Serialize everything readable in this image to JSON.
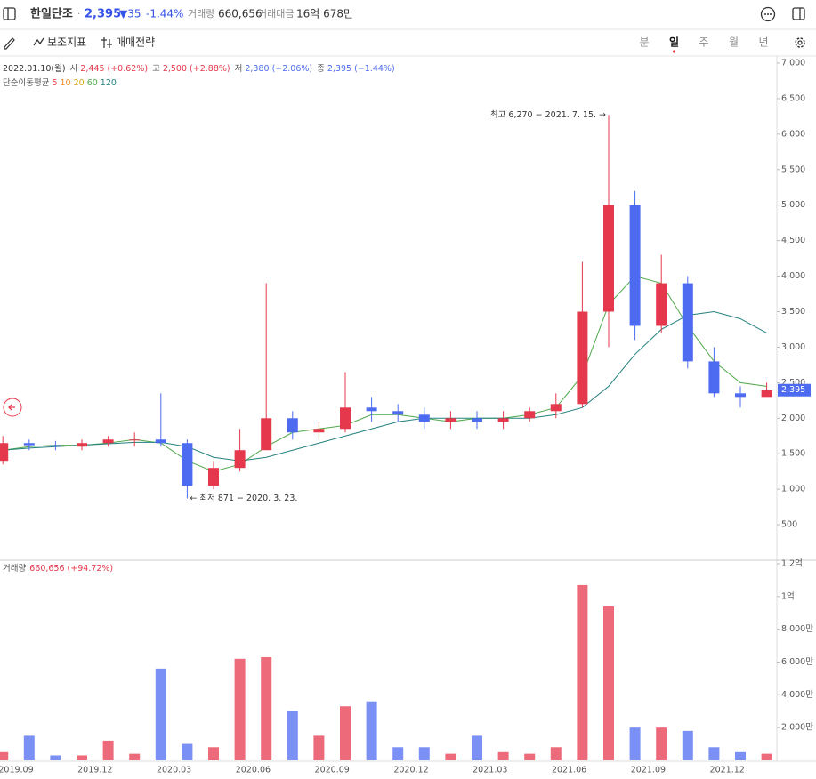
{
  "header": {
    "name": "한일단조",
    "price": "2,395",
    "change": "▼35",
    "change_pct": "-1.44%",
    "volume_label": "거래량",
    "volume": "660,656",
    "amount_label": "거래대금",
    "amount": "16억 678만"
  },
  "toolbar": {
    "indicators": "보조지표",
    "strategy": "매매전략",
    "periods": [
      "분",
      "일",
      "주",
      "월",
      "년"
    ],
    "active_period": 1
  },
  "chart_data": [
    {
      "type": "candlestick",
      "info": [
        {
          "label": "2022.01.10(월)",
          "value": "",
          "color": "#333"
        }
      ],
      "info_items": [
        {
          "label": "시",
          "value": "2,445 (+0.62%)",
          "color": "#e5384c"
        },
        {
          "label": "고",
          "value": "2,500 (+2.88%)",
          "color": "#e5384c"
        },
        {
          "label": "저",
          "value": "2,380 (−2.06%)",
          "color": "#4d6bf0"
        },
        {
          "label": "종",
          "value": "2,395 (−1.44%)",
          "color": "#4d6bf0"
        }
      ],
      "ma_title": "단순이동평균",
      "ma_periods": [
        {
          "name": "5",
          "color": "#e8454f"
        },
        {
          "name": "10",
          "color": "#f08a24"
        },
        {
          "name": "20",
          "color": "#d4a81c"
        }
      ],
      "categories": [
        null,
        "2019.09",
        null,
        null,
        "2019.12",
        null,
        null,
        "2020.03",
        null,
        null,
        "2020.06",
        null,
        null,
        "2020.09",
        null,
        null,
        "2020.12",
        null,
        null,
        "2021.03",
        null,
        null,
        "2021.06",
        null,
        null,
        "2021.09",
        null,
        null,
        "2021.12",
        null
      ],
      "open": [
        1400,
        1650,
        1620,
        1600,
        1650,
        1700,
        1700,
        1650,
        1050,
        1300,
        1550,
        2000,
        1800,
        1850,
        2150,
        2100,
        2050,
        1950,
        2000,
        1950,
        2000,
        2100,
        2200,
        3500,
        5000,
        3300,
        3900,
        2800,
        2350,
        2300
      ],
      "high": [
        1750,
        1700,
        1680,
        1700,
        1750,
        1800,
        2350,
        1700,
        1400,
        1850,
        3900,
        2100,
        1950,
        2650,
        2300,
        2200,
        2150,
        2100,
        2100,
        2100,
        2150,
        2350,
        4200,
        6270,
        5200,
        4300,
        4000,
        3000,
        2450,
        2500
      ],
      "low": [
        1350,
        1550,
        1550,
        1550,
        1600,
        1600,
        1600,
        871,
        1000,
        1250,
        1550,
        1700,
        1700,
        1800,
        1950,
        1950,
        1850,
        1850,
        1850,
        1850,
        1950,
        2000,
        2150,
        3000,
        3100,
        3200,
        2700,
        2300,
        2150,
        2300
      ],
      "close": [
        1650,
        1620,
        1600,
        1650,
        1700,
        1700,
        1650,
        1050,
        1300,
        1550,
        2000,
        1800,
        1850,
        2150,
        2100,
        2050,
        1950,
        2000,
        1950,
        2000,
        2100,
        2200,
        3500,
        5000,
        3300,
        3900,
        2800,
        2350,
        2300,
        2395
      ],
      "series": [
        {
          "name": "60",
          "color": "#4ea84a",
          "values": [
            1550,
            1600,
            1620,
            1620,
            1650,
            1700,
            1650,
            1400,
            1250,
            1350,
            1600,
            1800,
            1850,
            1900,
            2050,
            2050,
            2000,
            1950,
            2000,
            2000,
            2050,
            2150,
            2600,
            3600,
            4000,
            3900,
            3300,
            2800,
            2500,
            2450
          ]
        },
        {
          "name": "120",
          "color": "#23807e",
          "values": [
            1550,
            1580,
            1600,
            1620,
            1640,
            1660,
            1660,
            1600,
            1450,
            1400,
            1450,
            1550,
            1650,
            1750,
            1850,
            1950,
            2000,
            2000,
            2000,
            2000,
            2000,
            2050,
            2150,
            2450,
            2900,
            3250,
            3450,
            3500,
            3400,
            3200
          ]
        }
      ],
      "up_color": "#e5384c",
      "down_color": "#4d6bf0",
      "ylim": [
        0,
        7100
      ],
      "yticks": [
        {
          "value": 7000,
          "label": "7,000"
        },
        {
          "value": 6500,
          "label": "6,500"
        },
        {
          "value": 6000,
          "label": "6,000"
        },
        {
          "value": 5500,
          "label": "5,500"
        },
        {
          "value": 5000,
          "label": "5,000"
        },
        {
          "value": 4500,
          "label": "4,500"
        },
        {
          "value": 4000,
          "label": "4,000"
        },
        {
          "value": 3500,
          "label": "3,500"
        },
        {
          "value": 3000,
          "label": "3,000"
        },
        {
          "value": 2500,
          "label": "2,500"
        },
        {
          "value": 2000,
          "label": "2,000"
        },
        {
          "value": 1500,
          "label": "1,500"
        },
        {
          "value": 1000,
          "label": "1,000"
        },
        500
      ],
      "last_price": {
        "value": 2395,
        "label": "2,395"
      },
      "annotations": [
        {
          "text": "최고 6,270 − 2021. 7. 15. →",
          "color": "#e5384c"
        },
        {
          "text": "← 최저 871 − 2020. 3. 23.",
          "color": "#4d6bf0"
        }
      ],
      "grid": false
    },
    {
      "type": "bar",
      "title": "거래량",
      "subtitle": "660,656 (+94.72%)",
      "values": [
        5000000,
        15000000,
        3000000,
        3000000,
        12000000,
        4000000,
        56000000,
        10000000,
        8000000,
        62000000,
        63000000,
        30000000,
        15000000,
        33000000,
        36000000,
        8000000,
        8000000,
        4000000,
        15000000,
        5000000,
        4000000,
        8000000,
        107000000,
        94000000,
        20000000,
        20000000,
        18000000,
        8000000,
        5000000,
        4000000
      ],
      "ylim": [
        0,
        120000000
      ],
      "yticks": [
        {
          "value": 120000000,
          "label": "1.2억"
        },
        {
          "value": 100000000,
          "label": "1억"
        },
        {
          "value": 80000000,
          "label": "8,000만"
        },
        {
          "value": 60000000,
          "label": "6,000만"
        },
        {
          "value": 40000000,
          "label": "4,000만"
        },
        {
          "value": 20000000,
          "label": "2,000만"
        }
      ],
      "grid": false
    }
  ]
}
